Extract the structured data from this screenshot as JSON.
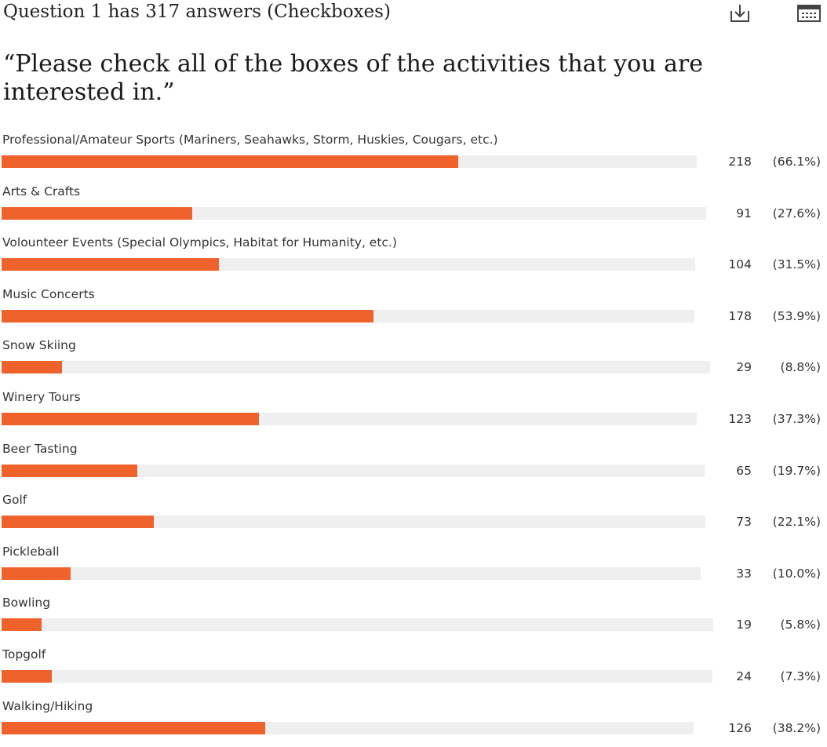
{
  "header": {
    "question_count": "Question 1 has 317 answers (Checkboxes)",
    "download_icon": "download-icon",
    "spreadsheet_icon": "spreadsheet-icon"
  },
  "question": {
    "title": "“Please check all of the boxes of the activities that you are interested in.”"
  },
  "colors": {
    "bar_fill": "#f0622b",
    "bar_track": "#efefef"
  },
  "answers": [
    {
      "label": "Professional/Amateur Sports (Mariners, Seahawks, Storm, Huskies, Cougars, etc.)",
      "count": "218",
      "percent": "(66.1%)",
      "fraction": 0.661
    },
    {
      "label": "Arts & Crafts",
      "count": "91",
      "percent": "(27.6%)",
      "fraction": 0.276
    },
    {
      "label": "Volounteer Events (Special Olympics, Habitat for Humanity, etc.)",
      "count": "104",
      "percent": "(31.5%)",
      "fraction": 0.315
    },
    {
      "label": "Music Concerts",
      "count": "178",
      "percent": "(53.9%)",
      "fraction": 0.539
    },
    {
      "label": "Snow Skiing",
      "count": "29",
      "percent": "(8.8%)",
      "fraction": 0.088
    },
    {
      "label": "Winery Tours",
      "count": "123",
      "percent": "(37.3%)",
      "fraction": 0.373
    },
    {
      "label": "Beer Tasting",
      "count": "65",
      "percent": "(19.7%)",
      "fraction": 0.197
    },
    {
      "label": "Golf",
      "count": "73",
      "percent": "(22.1%)",
      "fraction": 0.221
    },
    {
      "label": "Pickleball",
      "count": "33",
      "percent": "(10.0%)",
      "fraction": 0.1
    },
    {
      "label": "Bowling",
      "count": "19",
      "percent": "(5.8%)",
      "fraction": 0.058
    },
    {
      "label": "Topgolf",
      "count": "24",
      "percent": "(7.3%)",
      "fraction": 0.073
    },
    {
      "label": "Walking/Hiking",
      "count": "126",
      "percent": "(38.2%)",
      "fraction": 0.382
    }
  ]
}
